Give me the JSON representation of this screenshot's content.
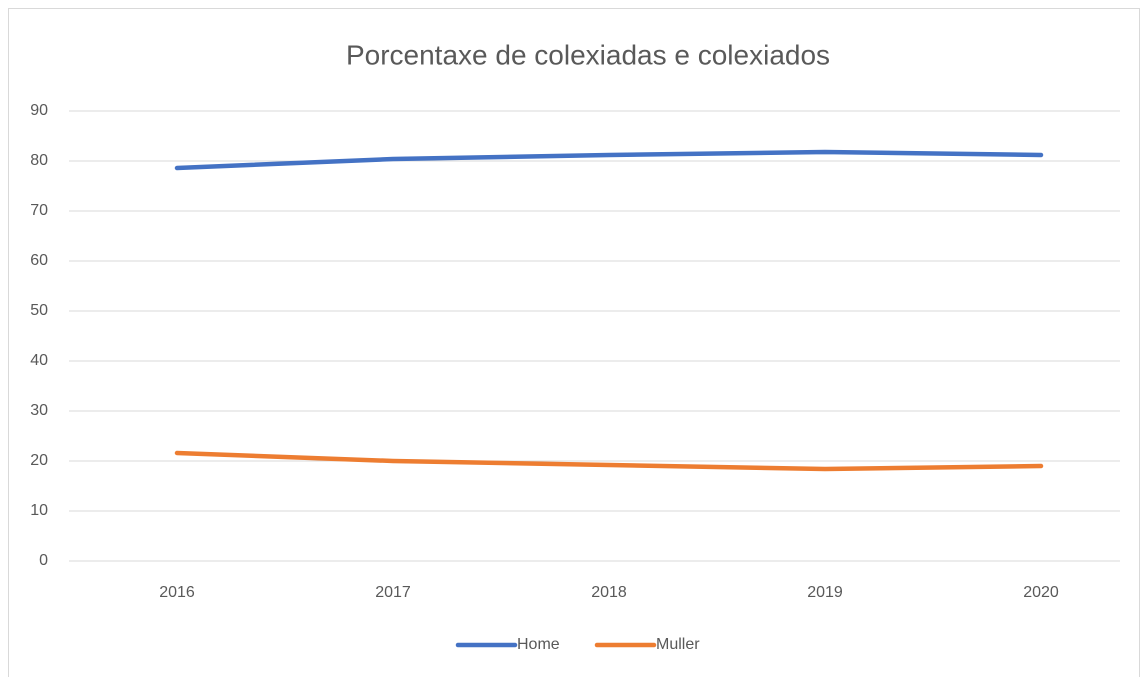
{
  "chart_data": {
    "type": "line",
    "title": "Porcentaxe de colexiadas e colexiados",
    "categories": [
      "2016",
      "2017",
      "2018",
      "2019",
      "2020"
    ],
    "series": [
      {
        "name": "Home",
        "color": "#4472c4",
        "values": [
          78.6,
          80.4,
          81.2,
          81.8,
          81.2
        ]
      },
      {
        "name": "Muller",
        "color": "#ed7d31",
        "values": [
          21.6,
          20.0,
          19.2,
          18.4,
          19.0
        ]
      }
    ],
    "ylim": [
      0,
      90
    ],
    "yticks": [
      0,
      10,
      20,
      30,
      40,
      50,
      60,
      70,
      80,
      90
    ],
    "grid": true,
    "legend": "bottom"
  }
}
